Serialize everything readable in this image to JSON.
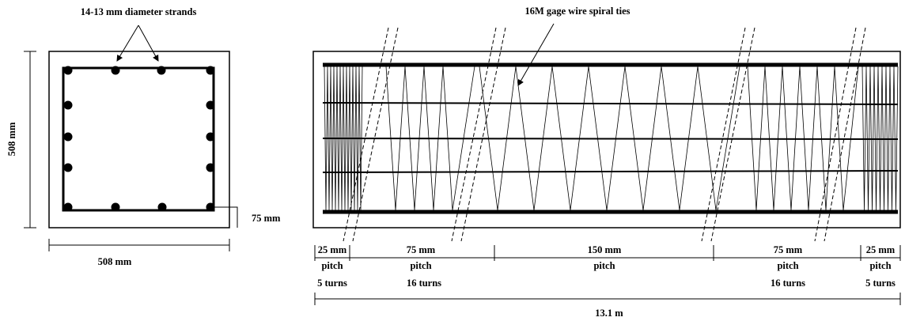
{
  "cross_section": {
    "strands_label": "14-13 mm diameter strands",
    "height_label": "508 mm",
    "width_label": "508 mm",
    "cover_label": "75 mm"
  },
  "elevation": {
    "spiral_label": "16M gage wire spiral ties",
    "zones": [
      {
        "pitch": "25 mm",
        "pitch_label": "pitch",
        "turns": "5 turns"
      },
      {
        "pitch": "75 mm",
        "pitch_label": "pitch",
        "turns": "16 turns"
      },
      {
        "pitch": "150 mm",
        "pitch_label": "pitch"
      },
      {
        "pitch": "75 mm",
        "pitch_label": "pitch",
        "turns": "16 turns"
      },
      {
        "pitch": "25 mm",
        "pitch_label": "pitch",
        "turns": "5 turns"
      }
    ],
    "length_label": "13.1 m"
  }
}
